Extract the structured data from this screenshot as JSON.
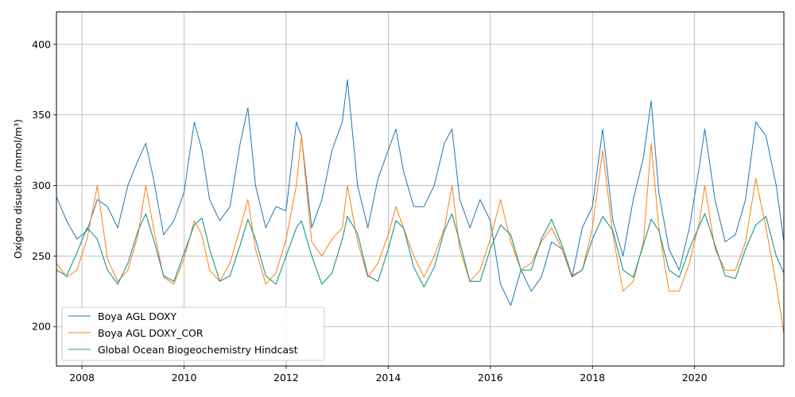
{
  "chart_data": {
    "type": "line",
    "title": "",
    "xlabel": "",
    "ylabel": "Oxígeno disuelto (mmol/m³)",
    "xlim": [
      2007.5,
      2021.75
    ],
    "ylim": [
      172,
      423
    ],
    "x_ticks": [
      2008,
      2010,
      2012,
      2014,
      2016,
      2018,
      2020
    ],
    "x_tick_labels": [
      "2008",
      "2010",
      "2012",
      "2014",
      "2016",
      "2018",
      "2020"
    ],
    "y_ticks": [
      200,
      250,
      300,
      350,
      400
    ],
    "y_tick_labels": [
      "200",
      "250",
      "300",
      "350",
      "400"
    ],
    "grid": true,
    "legend_position": "lower-left",
    "series": [
      {
        "name": "Boya AGL DOXY",
        "color": "#1f77b4",
        "x": [
          2007.5,
          2007.7,
          2007.9,
          2008.1,
          2008.3,
          2008.5,
          2008.7,
          2008.9,
          2009.1,
          2009.25,
          2009.4,
          2009.6,
          2009.8,
          2010.0,
          2010.2,
          2010.35,
          2010.5,
          2010.7,
          2010.9,
          2011.1,
          2011.25,
          2011.4,
          2011.6,
          2011.8,
          2012.0,
          2012.2,
          2012.3,
          2012.5,
          2012.7,
          2012.9,
          2013.1,
          2013.2,
          2013.4,
          2013.6,
          2013.8,
          2014.0,
          2014.15,
          2014.3,
          2014.5,
          2014.7,
          2014.9,
          2015.1,
          2015.25,
          2015.4,
          2015.6,
          2015.8,
          2016.0,
          2016.2,
          2016.4,
          2016.6,
          2016.8,
          2017.0,
          2017.2,
          2017.4,
          2017.6,
          2017.8,
          2018.0,
          2018.2,
          2018.4,
          2018.6,
          2018.8,
          2019.0,
          2019.15,
          2019.3,
          2019.5,
          2019.7,
          2019.9,
          2020.1,
          2020.2,
          2020.4,
          2020.6,
          2020.8,
          2021.0,
          2021.2,
          2021.4,
          2021.6,
          2021.75
        ],
        "y": [
          292,
          275,
          262,
          268,
          290,
          285,
          270,
          300,
          318,
          330,
          305,
          265,
          275,
          295,
          345,
          325,
          290,
          275,
          285,
          330,
          355,
          300,
          270,
          285,
          282,
          345,
          335,
          270,
          290,
          325,
          345,
          375,
          300,
          270,
          305,
          325,
          340,
          310,
          285,
          285,
          300,
          330,
          340,
          290,
          270,
          290,
          275,
          230,
          215,
          240,
          225,
          235,
          260,
          255,
          235,
          270,
          285,
          340,
          275,
          250,
          290,
          320,
          360,
          295,
          255,
          240,
          270,
          315,
          340,
          290,
          260,
          265,
          290,
          345,
          335,
          300,
          260
        ]
      },
      {
        "name": "Boya AGL DOXY_COR",
        "color": "#ff7f0e",
        "x": [
          2007.5,
          2007.7,
          2007.9,
          2008.1,
          2008.3,
          2008.5,
          2008.7,
          2008.9,
          2009.1,
          2009.25,
          2009.4,
          2009.6,
          2009.8,
          2010.0,
          2010.2,
          2010.35,
          2010.5,
          2010.7,
          2010.9,
          2011.1,
          2011.25,
          2011.4,
          2011.6,
          2011.8,
          2012.0,
          2012.2,
          2012.3,
          2012.5,
          2012.7,
          2012.9,
          2013.1,
          2013.2,
          2013.4,
          2013.6,
          2013.8,
          2014.0,
          2014.15,
          2014.3,
          2014.5,
          2014.7,
          2014.9,
          2015.1,
          2015.25,
          2015.4,
          2015.6,
          2015.8,
          2016.0,
          2016.2,
          2016.4,
          2016.6,
          2016.8,
          2017.0,
          2017.2,
          2017.4,
          2017.6,
          2017.8,
          2018.0,
          2018.2,
          2018.4,
          2018.6,
          2018.8,
          2019.0,
          2019.15,
          2019.3,
          2019.5,
          2019.7,
          2019.9,
          2020.1,
          2020.2,
          2020.4,
          2020.6,
          2020.8,
          2021.0,
          2021.2,
          2021.4,
          2021.6,
          2021.75
        ],
        "y": [
          245,
          235,
          240,
          262,
          300,
          248,
          232,
          240,
          265,
          300,
          270,
          235,
          230,
          248,
          275,
          265,
          240,
          232,
          245,
          270,
          290,
          255,
          230,
          238,
          262,
          300,
          335,
          260,
          250,
          262,
          270,
          300,
          260,
          235,
          245,
          265,
          285,
          270,
          250,
          235,
          250,
          270,
          300,
          255,
          232,
          240,
          262,
          290,
          260,
          240,
          245,
          260,
          270,
          255,
          235,
          240,
          270,
          325,
          265,
          225,
          232,
          260,
          330,
          270,
          225,
          225,
          245,
          275,
          300,
          255,
          240,
          240,
          260,
          305,
          270,
          230,
          195
        ]
      },
      {
        "name": "Global Ocean Biogeochemistry Hindcast",
        "color": "#2a9d8f",
        "x": [
          2007.5,
          2007.7,
          2007.9,
          2008.1,
          2008.3,
          2008.5,
          2008.7,
          2008.9,
          2009.1,
          2009.25,
          2009.4,
          2009.6,
          2009.8,
          2010.0,
          2010.2,
          2010.35,
          2010.5,
          2010.7,
          2010.9,
          2011.1,
          2011.25,
          2011.4,
          2011.6,
          2011.8,
          2012.0,
          2012.2,
          2012.3,
          2012.5,
          2012.7,
          2012.9,
          2013.1,
          2013.2,
          2013.4,
          2013.6,
          2013.8,
          2014.0,
          2014.15,
          2014.3,
          2014.5,
          2014.7,
          2014.9,
          2015.1,
          2015.25,
          2015.4,
          2015.6,
          2015.8,
          2016.0,
          2016.2,
          2016.4,
          2016.6,
          2016.8,
          2017.0,
          2017.2,
          2017.4,
          2017.6,
          2017.8,
          2018.0,
          2018.2,
          2018.4,
          2018.6,
          2018.8,
          2019.0,
          2019.15,
          2019.3,
          2019.5,
          2019.7,
          2019.9,
          2020.1,
          2020.2,
          2020.4,
          2020.6,
          2020.8,
          2021.0,
          2021.2,
          2021.4,
          2021.6,
          2021.75
        ],
        "y": [
          240,
          236,
          252,
          270,
          262,
          240,
          230,
          245,
          268,
          280,
          262,
          236,
          232,
          252,
          272,
          277,
          255,
          232,
          236,
          258,
          276,
          262,
          236,
          230,
          250,
          270,
          275,
          250,
          230,
          238,
          262,
          278,
          266,
          236,
          232,
          255,
          275,
          270,
          242,
          228,
          242,
          268,
          280,
          260,
          232,
          232,
          255,
          272,
          265,
          240,
          240,
          262,
          276,
          258,
          236,
          240,
          262,
          278,
          268,
          240,
          235,
          258,
          276,
          268,
          240,
          235,
          255,
          272,
          280,
          258,
          236,
          234,
          255,
          272,
          278,
          250,
          238
        ]
      }
    ]
  }
}
